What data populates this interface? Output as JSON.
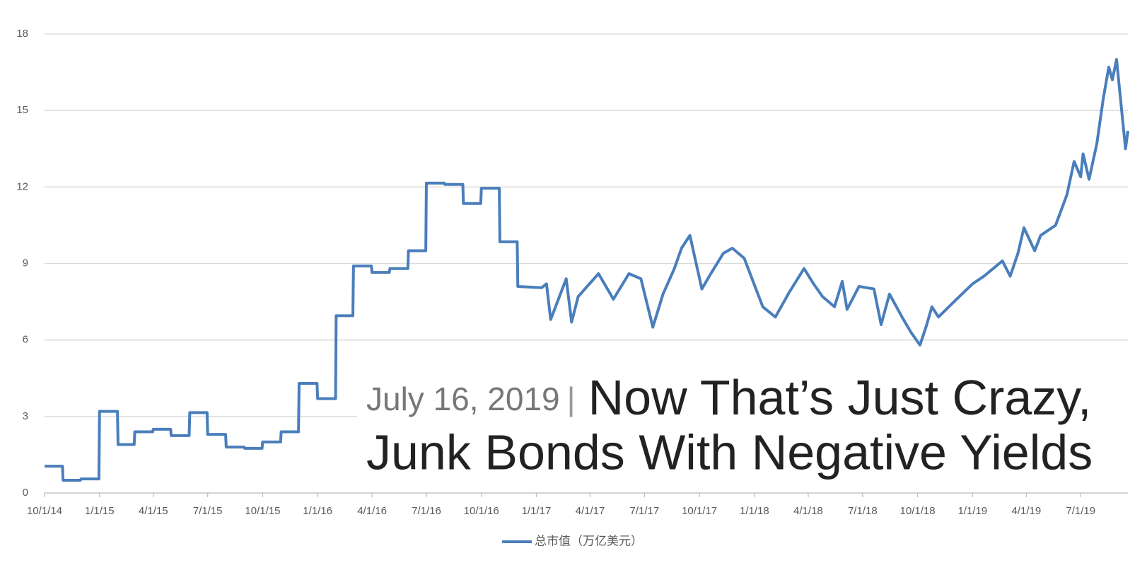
{
  "chart_data": {
    "type": "line",
    "series": [
      {
        "name": "总市值（万亿美元）",
        "color": "#4a7ebb",
        "values": [
          1.05,
          1.05,
          0.5,
          0.5,
          0.55,
          0.55,
          3.2,
          3.2,
          1.9,
          1.9,
          2.4,
          2.4,
          2.5,
          2.5,
          2.25,
          2.25,
          3.15,
          3.15,
          2.3,
          2.3,
          1.8,
          1.8,
          1.75,
          1.75,
          2.0,
          2.0,
          2.4,
          2.4,
          4.3,
          4.3,
          3.7,
          3.7,
          6.95,
          6.95,
          8.9,
          8.9,
          8.65,
          8.65,
          8.8,
          8.8,
          9.5,
          9.5,
          12.15,
          12.15,
          12.1,
          12.1,
          11.35,
          11.35,
          11.95,
          11.95,
          9.85,
          9.85,
          8.1,
          8.05,
          8.2,
          6.8,
          8.4,
          6.7,
          7.7,
          8.6,
          7.6,
          8.6,
          8.4,
          6.5,
          7.8,
          8.8,
          9.6,
          10.1,
          8.0,
          8.6,
          9.4,
          9.6,
          9.2,
          8.4,
          7.3,
          6.9,
          7.9,
          8.8,
          8.2,
          7.7,
          7.3,
          8.3,
          7.2,
          8.1,
          8.0,
          6.6,
          7.8,
          6.9,
          6.3,
          5.8,
          6.5,
          7.3,
          6.9,
          7.5,
          8.2,
          8.5,
          9.1,
          8.5,
          9.4,
          10.4,
          9.5,
          10.1,
          10.5,
          11.7,
          13.0,
          12.4,
          13.3,
          12.3,
          13.7,
          15.5,
          16.7,
          16.2,
          17.0,
          15.6,
          13.5,
          14.2
        ]
      }
    ],
    "x": [
      "2014-10-01",
      "2014-10-31",
      "2014-11-01",
      "2014-11-30",
      "2014-12-01",
      "2014-12-31",
      "2015-01-01",
      "2015-01-31",
      "2015-02-01",
      "2015-02-28",
      "2015-03-01",
      "2015-03-31",
      "2015-04-01",
      "2015-04-30",
      "2015-05-01",
      "2015-05-31",
      "2015-06-01",
      "2015-06-30",
      "2015-07-01",
      "2015-07-31",
      "2015-08-01",
      "2015-08-31",
      "2015-09-01",
      "2015-09-30",
      "2015-10-01",
      "2015-10-31",
      "2015-11-01",
      "2015-11-30",
      "2015-12-01",
      "2015-12-31",
      "2016-01-01",
      "2016-01-31",
      "2016-02-01",
      "2016-02-29",
      "2016-03-01",
      "2016-03-31",
      "2016-04-01",
      "2016-04-30",
      "2016-05-01",
      "2016-05-31",
      "2016-06-01",
      "2016-06-30",
      "2016-07-01",
      "2016-07-31",
      "2016-08-01",
      "2016-08-31",
      "2016-09-01",
      "2016-09-30",
      "2016-10-01",
      "2016-10-31",
      "2016-11-01",
      "2016-11-30",
      "2016-12-01",
      "2017-01-10",
      "2017-01-18",
      "2017-01-25",
      "2017-02-20",
      "2017-03-01",
      "2017-03-12",
      "2017-04-15",
      "2017-05-10",
      "2017-06-05",
      "2017-06-25",
      "2017-07-15",
      "2017-08-01",
      "2017-08-20",
      "2017-09-01",
      "2017-09-15",
      "2017-10-05",
      "2017-10-20",
      "2017-11-10",
      "2017-11-25",
      "2017-12-15",
      "2017-12-28",
      "2018-01-15",
      "2018-02-05",
      "2018-03-01",
      "2018-03-25",
      "2018-04-10",
      "2018-04-25",
      "2018-05-15",
      "2018-05-28",
      "2018-06-05",
      "2018-06-25",
      "2018-07-20",
      "2018-08-01",
      "2018-08-15",
      "2018-09-05",
      "2018-09-20",
      "2018-10-05",
      "2018-10-15",
      "2018-10-25",
      "2018-11-05",
      "2018-12-01",
      "2019-01-01",
      "2019-01-20",
      "2019-02-20",
      "2019-03-05",
      "2019-03-18",
      "2019-03-28",
      "2019-04-15",
      "2019-04-25",
      "2019-05-20",
      "2019-06-08",
      "2019-06-20",
      "2019-07-01",
      "2019-07-05",
      "2019-07-15",
      "2019-07-28",
      "2019-08-08",
      "2019-08-17",
      "2019-08-23",
      "2019-08-30",
      "2019-09-05",
      "2019-09-14",
      "2019-09-18"
    ],
    "xlim": [
      "2014-10-01",
      "2019-09-18"
    ],
    "xticks": [
      {
        "value": "2014-10-01",
        "label": "10/1/14"
      },
      {
        "value": "2015-01-01",
        "label": "1/1/15"
      },
      {
        "value": "2015-04-01",
        "label": "4/1/15"
      },
      {
        "value": "2015-07-01",
        "label": "7/1/15"
      },
      {
        "value": "2015-10-01",
        "label": "10/1/15"
      },
      {
        "value": "2016-01-01",
        "label": "1/1/16"
      },
      {
        "value": "2016-04-01",
        "label": "4/1/16"
      },
      {
        "value": "2016-07-01",
        "label": "7/1/16"
      },
      {
        "value": "2016-10-01",
        "label": "10/1/16"
      },
      {
        "value": "2017-01-01",
        "label": "1/1/17"
      },
      {
        "value": "2017-04-01",
        "label": "4/1/17"
      },
      {
        "value": "2017-07-01",
        "label": "7/1/17"
      },
      {
        "value": "2017-10-01",
        "label": "10/1/17"
      },
      {
        "value": "2018-01-01",
        "label": "1/1/18"
      },
      {
        "value": "2018-04-01",
        "label": "4/1/18"
      },
      {
        "value": "2018-07-01",
        "label": "7/1/18"
      },
      {
        "value": "2018-10-01",
        "label": "10/1/18"
      },
      {
        "value": "2019-01-01",
        "label": "1/1/19"
      },
      {
        "value": "2019-04-01",
        "label": "4/1/19"
      },
      {
        "value": "2019-07-01",
        "label": "7/1/19"
      }
    ],
    "ylim": [
      0,
      18
    ],
    "yticks": [
      0,
      3,
      6,
      9,
      12,
      15,
      18
    ],
    "grid": true,
    "legend": "bottom",
    "annotation": {
      "date": "July 16, 2019",
      "separator": "|",
      "lines": [
        "Now That’s Just Crazy,",
        "Junk Bonds With Negative Yields"
      ]
    }
  }
}
